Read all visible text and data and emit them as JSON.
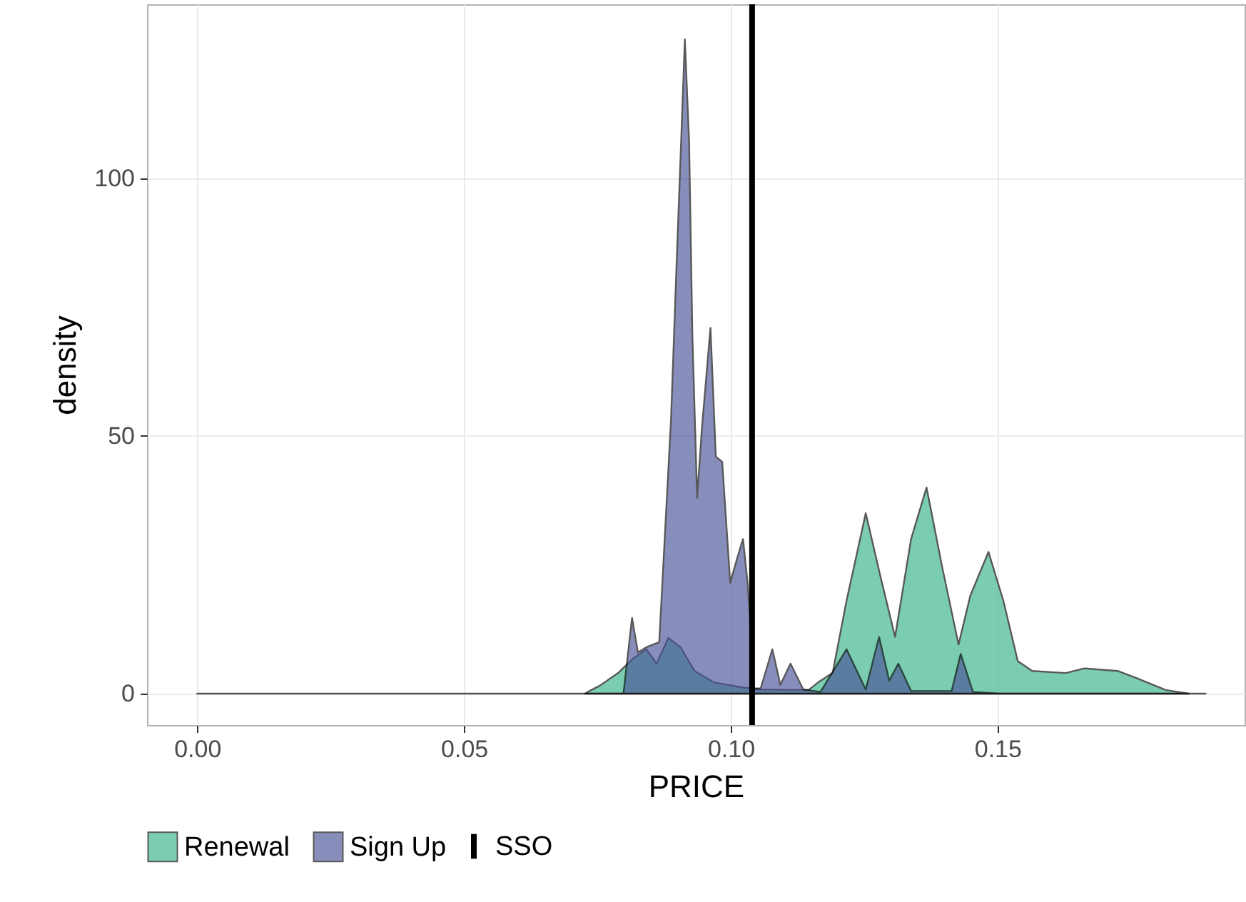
{
  "chart_data": {
    "type": "area",
    "xlabel": "PRICE",
    "ylabel": "density",
    "xlim": [
      -0.0094,
      0.1963
    ],
    "ylim": [
      -6.1,
      133.8
    ],
    "xticks": [
      {
        "value": 0,
        "label": "0.00"
      },
      0.05,
      {
        "value": 0.1,
        "label": "0.10"
      },
      0.15
    ],
    "yticks": [
      0,
      50,
      100
    ],
    "grid": true,
    "legend": "bottom",
    "series": [
      {
        "name": "Renewal",
        "color": "#36b38a",
        "x": [
          0.0727,
          0.0735,
          0.0754,
          0.0789,
          0.0816,
          0.0842,
          0.0861,
          0.0883,
          0.0906,
          0.0932,
          0.0968,
          0.1021,
          0.1056,
          0.1146,
          0.1164,
          0.1191,
          0.1217,
          0.1253,
          0.128,
          0.1308,
          0.1338,
          0.1367,
          0.1396,
          0.1427,
          0.1449,
          0.1483,
          0.1511,
          0.1538,
          0.1565,
          0.1628,
          0.1663,
          0.1725,
          0.1761,
          0.1815,
          0.1858
        ],
        "values": [
          0,
          0.5,
          1.5,
          4,
          6.7,
          8.6,
          5.8,
          10.8,
          9,
          4.4,
          2.2,
          1.2,
          0.8,
          0.7,
          2.2,
          4,
          18,
          35,
          23,
          11,
          30,
          40,
          24.7,
          9.5,
          19,
          27.5,
          18,
          6.3,
          4.4,
          4,
          4.9,
          4.4,
          3,
          0.7,
          0
        ]
      },
      {
        "name": "Sign Up",
        "color": "#4a5299",
        "x": [
          0,
          0.0433,
          0.0727,
          0.0799,
          0.0815,
          0.0826,
          0.0842,
          0.0866,
          0.0888,
          0.0897,
          0.0907,
          0.0914,
          0.0922,
          0.0928,
          0.0937,
          0.0946,
          0.0962,
          0.0972,
          0.0984,
          0.0999,
          0.1013,
          0.1023,
          0.1032,
          0.1044,
          0.1056,
          0.1078,
          0.1093,
          0.1112,
          0.1136,
          0.1168,
          0.1217,
          0.1253,
          0.1278,
          0.1297,
          0.1314,
          0.1338,
          0.1414,
          0.1431,
          0.1454,
          0.1503,
          0.189
        ],
        "values": [
          0,
          0,
          0,
          0,
          14.7,
          8,
          9,
          10,
          53,
          79,
          107,
          127,
          107,
          70,
          38,
          51.5,
          71,
          46,
          45,
          21.5,
          26.6,
          30,
          21,
          1,
          1,
          8.6,
          1.7,
          5.8,
          0.8,
          0.3,
          8.6,
          0.8,
          11,
          2.5,
          5.8,
          0.5,
          0.5,
          7.7,
          0.3,
          0,
          0
        ]
      }
    ],
    "ref_lines": [
      {
        "axis": "x",
        "value": 0.104,
        "label": "SSO",
        "color": "#000000"
      }
    ]
  }
}
